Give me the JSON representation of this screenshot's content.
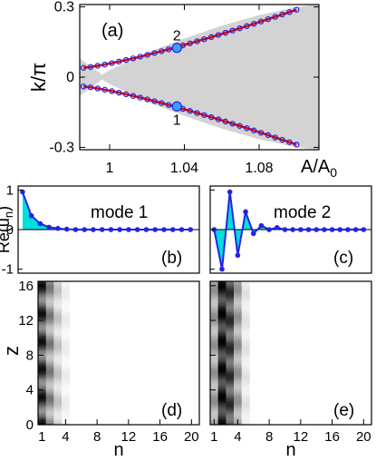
{
  "chart_data": [
    {
      "id": "a",
      "type": "line",
      "panel_label": "(a)",
      "xlabel_main": "A/A",
      "xlabel_sub": "0",
      "ylabel": "k/π",
      "xlim": [
        0.984,
        1.112
      ],
      "ylim": [
        -0.31,
        0.31
      ],
      "xticks": [
        1,
        1.04,
        1.08
      ],
      "xtick_labels": [
        "1",
        "1.04",
        "1.08"
      ],
      "yticks": [
        -0.3,
        0,
        0.3
      ],
      "ytick_labels": [
        "-0.3",
        "0",
        "0.3"
      ],
      "band_x": [
        0.984,
        0.99,
        0.996,
        1.0,
        1.02,
        1.04,
        1.06,
        1.08,
        1.1,
        1.112
      ],
      "band_upper": [
        0.08,
        0.045,
        0.01,
        0.03,
        0.105,
        0.165,
        0.22,
        0.265,
        0.3,
        0.31
      ],
      "band_lower": [
        -0.08,
        -0.045,
        -0.01,
        -0.03,
        -0.105,
        -0.165,
        -0.22,
        -0.265,
        -0.3,
        -0.31
      ],
      "series": [
        {
          "curve": "upper",
          "x0": 0.986,
          "x1": 1.1,
          "k0": 0.04,
          "k1": 0.288,
          "p": 1.25
        },
        {
          "curve": "lower",
          "x0": 0.986,
          "x1": 1.1,
          "k0": -0.04,
          "k1": -0.288,
          "p": 1.25
        }
      ],
      "markers": [
        {
          "label": "2",
          "x": 1.036,
          "y": 0.125
        },
        {
          "label": "1",
          "x": 1.036,
          "y": -0.125
        }
      ],
      "colors": {
        "band": "#d3d3d3",
        "line": "#e00000",
        "circle": "#2323e0",
        "marker_fill": "#3aa0ff"
      }
    },
    {
      "id": "b",
      "type": "line",
      "panel_label": "(b)",
      "title": "mode 1",
      "ylabel": "Re(u",
      "ylabel_sub": "n",
      "ylabel_end": ")",
      "xlim": [
        0.5,
        21
      ],
      "ylim": [
        -1.1,
        1.1
      ],
      "yticks": [
        -1,
        0,
        1
      ],
      "ytick_labels": [
        "-1",
        "0",
        "1"
      ],
      "n": [
        1,
        2,
        3,
        4,
        5,
        6,
        7,
        8,
        9,
        10,
        11,
        12,
        13,
        14,
        15,
        16,
        17,
        18,
        19,
        20
      ],
      "values": [
        0.95,
        0.35,
        0.15,
        0.06,
        0.03,
        0.01,
        0,
        0,
        0,
        0,
        0,
        0,
        0,
        0,
        0,
        0,
        0,
        0,
        0,
        0
      ],
      "colors": {
        "line": "#2323e0",
        "fill": "#00dede"
      }
    },
    {
      "id": "c",
      "type": "line",
      "panel_label": "(c)",
      "title": "mode 2",
      "xlim": [
        0.5,
        21
      ],
      "ylim": [
        -1.1,
        1.1
      ],
      "n": [
        1,
        2,
        3,
        4,
        5,
        6,
        7,
        8,
        9,
        10,
        11,
        12,
        13,
        14,
        15,
        16,
        17,
        18,
        19,
        20
      ],
      "values": [
        0.0,
        -1.0,
        0.95,
        -0.65,
        0.45,
        -0.1,
        0.1,
        0.0,
        0.05,
        0,
        0,
        0,
        0,
        0,
        0,
        0,
        0,
        0,
        0,
        0
      ],
      "colors": {
        "line": "#2323e0",
        "fill": "#00dede"
      }
    },
    {
      "id": "d",
      "type": "heatmap",
      "panel_label": "(d)",
      "xlabel": "n",
      "ylabel": "z",
      "xlim": [
        0.5,
        21
      ],
      "ylim": [
        0,
        16.5
      ],
      "xticks": [
        1,
        4,
        8,
        12,
        16,
        20
      ],
      "xtick_labels": [
        "1",
        "4",
        "8",
        "12",
        "16",
        "20"
      ],
      "yticks": [
        0,
        4,
        8,
        12,
        16
      ],
      "ytick_labels": [
        "0",
        "4",
        "8",
        "12",
        "16"
      ],
      "profile": [
        0.95,
        0.55,
        0.25,
        0.08
      ],
      "period": 3.2,
      "mod": [
        0.55,
        0.6,
        0.65,
        0.7
      ],
      "phase": [
        0,
        0.5,
        1.0,
        1.5
      ]
    },
    {
      "id": "e",
      "type": "heatmap",
      "panel_label": "(e)",
      "xlabel": "n",
      "xlim": [
        0.5,
        21
      ],
      "ylim": [
        0,
        16.5
      ],
      "xticks": [
        1,
        4,
        8,
        12,
        16,
        20
      ],
      "xtick_labels": [
        "1",
        "4",
        "8",
        "12",
        "16",
        "20"
      ],
      "yticks": [
        0,
        4,
        8,
        12,
        16
      ],
      "profile": [
        0.45,
        1.0,
        0.85,
        0.45,
        0.12
      ],
      "period": 3.2,
      "mod": [
        0.5,
        0.35,
        0.4,
        0.5,
        0.6
      ],
      "phase": [
        0.8,
        0,
        1.6,
        0.8,
        1.6
      ]
    }
  ]
}
